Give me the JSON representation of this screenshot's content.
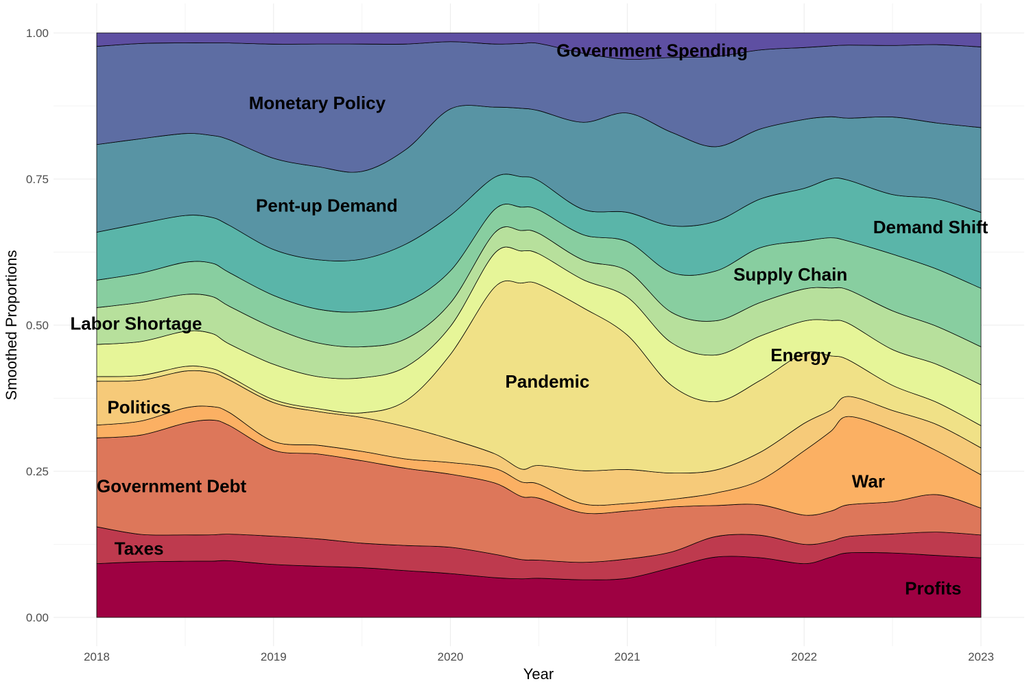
{
  "chart_data": {
    "type": "area",
    "stacked": true,
    "normalized": true,
    "xlabel": "Year",
    "ylabel": "Smoothed Proportions",
    "x_ticks": [
      "2018",
      "2019",
      "2020",
      "2021",
      "2022",
      "2023"
    ],
    "y_ticks": [
      "0.00",
      "0.25",
      "0.50",
      "0.75",
      "1.00"
    ],
    "xlim": [
      2018.0,
      2023.0
    ],
    "ylim": [
      0,
      1
    ],
    "grid": true,
    "x": [
      2018.0,
      2018.25,
      2018.5,
      2018.65,
      2018.75,
      2019.0,
      2019.25,
      2019.5,
      2019.75,
      2020.0,
      2020.25,
      2020.4,
      2020.5,
      2020.75,
      2021.0,
      2021.25,
      2021.5,
      2021.75,
      2022.0,
      2022.15,
      2022.25,
      2022.5,
      2022.75,
      2023.0
    ],
    "series": [
      {
        "name": "Profits",
        "color": "#9e0142",
        "values": [
          0.092,
          0.095,
          0.096,
          0.096,
          0.096,
          0.09,
          0.088,
          0.085,
          0.08,
          0.075,
          0.068,
          0.066,
          0.067,
          0.067,
          0.067,
          0.085,
          0.097,
          0.098,
          0.092,
          0.102,
          0.106,
          0.108,
          0.106,
          0.102
        ]
      },
      {
        "name": "Taxes",
        "color": "#be3a4e",
        "values": [
          0.063,
          0.047,
          0.045,
          0.045,
          0.045,
          0.048,
          0.047,
          0.042,
          0.043,
          0.045,
          0.04,
          0.033,
          0.031,
          0.031,
          0.033,
          0.027,
          0.033,
          0.037,
          0.033,
          0.027,
          0.027,
          0.032,
          0.04,
          0.039
        ]
      },
      {
        "name": "Government Debt",
        "color": "#dd775a",
        "values": [
          0.152,
          0.17,
          0.191,
          0.196,
          0.184,
          0.146,
          0.146,
          0.141,
          0.132,
          0.125,
          0.122,
          0.108,
          0.106,
          0.088,
          0.082,
          0.077,
          0.05,
          0.05,
          0.05,
          0.051,
          0.052,
          0.054,
          0.064,
          0.046
        ]
      },
      {
        "name": "War",
        "color": "#fbb063",
        "values": [
          0.022,
          0.024,
          0.026,
          0.023,
          0.022,
          0.015,
          0.015,
          0.016,
          0.016,
          0.02,
          0.025,
          0.025,
          0.024,
          0.016,
          0.013,
          0.013,
          0.02,
          0.04,
          0.11,
          0.135,
          0.145,
          0.12,
          0.075,
          0.057
        ]
      },
      {
        "name": "Politics",
        "color": "#f6ca79",
        "values": [
          0.075,
          0.07,
          0.063,
          0.058,
          0.055,
          0.066,
          0.058,
          0.058,
          0.055,
          0.04,
          0.025,
          0.022,
          0.032,
          0.059,
          0.058,
          0.045,
          0.037,
          0.046,
          0.047,
          0.036,
          0.033,
          0.033,
          0.045,
          0.046
        ]
      },
      {
        "name": "Pandemic",
        "color": "#f0e187",
        "values": [
          0.008,
          0.008,
          0.008,
          0.007,
          0.006,
          0.005,
          0.005,
          0.008,
          0.045,
          0.145,
          0.285,
          0.318,
          0.31,
          0.29,
          0.23,
          0.15,
          0.11,
          0.118,
          0.12,
          0.092,
          0.06,
          0.042,
          0.038,
          0.038
        ]
      },
      {
        "name": "Energy",
        "color": "#e6f598",
        "values": [
          0.055,
          0.058,
          0.06,
          0.06,
          0.055,
          0.06,
          0.055,
          0.06,
          0.058,
          0.048,
          0.058,
          0.055,
          0.052,
          0.05,
          0.065,
          0.073,
          0.075,
          0.073,
          0.055,
          0.06,
          0.06,
          0.06,
          0.065,
          0.07
        ]
      },
      {
        "name": "Labor Shortage",
        "color": "#b7e09c",
        "values": [
          0.063,
          0.067,
          0.063,
          0.063,
          0.064,
          0.062,
          0.058,
          0.053,
          0.048,
          0.04,
          0.035,
          0.035,
          0.035,
          0.035,
          0.045,
          0.052,
          0.055,
          0.055,
          0.055,
          0.055,
          0.055,
          0.065,
          0.065,
          0.065
        ]
      },
      {
        "name": "Supply Chain",
        "color": "#88cea0",
        "values": [
          0.047,
          0.05,
          0.055,
          0.057,
          0.057,
          0.055,
          0.058,
          0.06,
          0.062,
          0.055,
          0.04,
          0.04,
          0.04,
          0.045,
          0.05,
          0.068,
          0.08,
          0.09,
          0.082,
          0.085,
          0.08,
          0.095,
          0.098,
          0.1
        ]
      },
      {
        "name": "Demand Shift",
        "color": "#5ab5a9",
        "values": [
          0.082,
          0.085,
          0.08,
          0.078,
          0.08,
          0.078,
          0.085,
          0.09,
          0.1,
          0.095,
          0.055,
          0.052,
          0.05,
          0.045,
          0.05,
          0.08,
          0.08,
          0.08,
          0.09,
          0.1,
          0.1,
          0.1,
          0.12,
          0.13
        ]
      },
      {
        "name": "Pent-up Demand",
        "color": "#5894a4",
        "values": [
          0.15,
          0.145,
          0.14,
          0.14,
          0.145,
          0.155,
          0.16,
          0.15,
          0.162,
          0.182,
          0.12,
          0.117,
          0.12,
          0.155,
          0.17,
          0.16,
          0.12,
          0.115,
          0.118,
          0.105,
          0.102,
          0.13,
          0.13,
          0.145
        ]
      },
      {
        "name": "Monetary Policy",
        "color": "#5d6da3",
        "values": [
          0.168,
          0.163,
          0.155,
          0.158,
          0.164,
          0.194,
          0.211,
          0.218,
          0.18,
          0.115,
          0.108,
          0.111,
          0.115,
          0.123,
          0.092,
          0.128,
          0.145,
          0.13,
          0.123,
          0.12,
          0.12,
          0.12,
          0.134,
          0.138
        ]
      },
      {
        "name": "Government Spending",
        "color": "#5e4fa2",
        "values": [
          0.023,
          0.018,
          0.017,
          0.017,
          0.017,
          0.019,
          0.019,
          0.019,
          0.019,
          0.015,
          0.019,
          0.018,
          0.018,
          0.036,
          0.045,
          0.042,
          0.038,
          0.028,
          0.025,
          0.022,
          0.02,
          0.021,
          0.02,
          0.024
        ]
      }
    ],
    "annotations": [
      {
        "text": "Government Spending",
        "x": 2020.6,
        "y": 0.97,
        "anchor": "start"
      },
      {
        "text": "Monetary Policy",
        "x": 2018.86,
        "y": 0.88,
        "anchor": "start"
      },
      {
        "text": "Pent-up Demand",
        "x": 2018.9,
        "y": 0.705,
        "anchor": "start"
      },
      {
        "text": "Demand Shift",
        "x": 2022.39,
        "y": 0.668,
        "anchor": "start"
      },
      {
        "text": "Supply Chain",
        "x": 2021.6,
        "y": 0.587,
        "anchor": "start"
      },
      {
        "text": "Labor Shortage",
        "x": 2017.85,
        "y": 0.503,
        "anchor": "start"
      },
      {
        "text": "Energy",
        "x": 2021.81,
        "y": 0.449,
        "anchor": "start"
      },
      {
        "text": "Pandemic",
        "x": 2020.31,
        "y": 0.404,
        "anchor": "start"
      },
      {
        "text": "Politics",
        "x": 2018.06,
        "y": 0.36,
        "anchor": "start"
      },
      {
        "text": "War",
        "x": 2022.27,
        "y": 0.233,
        "anchor": "start"
      },
      {
        "text": "Government Debt",
        "x": 2018.0,
        "y": 0.225,
        "anchor": "start"
      },
      {
        "text": "Taxes",
        "x": 2018.1,
        "y": 0.118,
        "anchor": "start"
      },
      {
        "text": "Profits",
        "x": 2022.57,
        "y": 0.05,
        "anchor": "start"
      }
    ]
  }
}
